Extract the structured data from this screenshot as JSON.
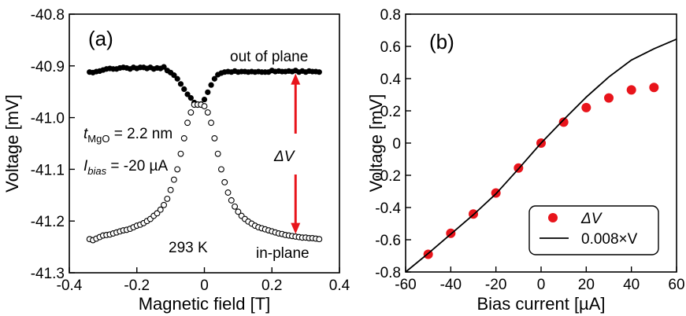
{
  "chart_data": [
    {
      "panel_label": "(a)",
      "type": "scatter",
      "xlabel": "Magnetic field  [T]",
      "ylabel": "Voltage  [mV]",
      "xlim": [
        -0.4,
        0.4
      ],
      "ylim": [
        -41.3,
        -40.8
      ],
      "xticks": [
        -0.4,
        -0.2,
        0,
        0.2,
        0.4
      ],
      "xtick_labels": [
        "-0.4",
        "-0.2",
        "0",
        "0.2",
        "0.4"
      ],
      "yticks": [
        -41.3,
        -41.2,
        -41.1,
        -41.0,
        -40.9,
        -40.8
      ],
      "ytick_labels": [
        "-41.3",
        "-41.2",
        "-41.1",
        "-41.0",
        "-40.9",
        "-40.8"
      ],
      "annotations": {
        "out_of_plane": "out of plane",
        "in_plane": "in-plane",
        "temperature": "293 K",
        "tmgo_sym": "t",
        "tmgo_sub": "MgO",
        "tmgo_val": " = 2.2 nm",
        "ibias_sym": "I",
        "ibias_sub": "bias",
        "ibias_val": " = -20 µA",
        "delta_v": "ΔV",
        "arrow_color": "#e8141b",
        "arrow_x": 0.27,
        "arrow_y_top": -40.915,
        "arrow_y_bottom": -41.225
      },
      "series": [
        {
          "style": "filled",
          "color": "#000000",
          "x": [
            -0.34,
            -0.33,
            -0.32,
            -0.31,
            -0.3,
            -0.29,
            -0.28,
            -0.27,
            -0.26,
            -0.25,
            -0.24,
            -0.23,
            -0.22,
            -0.21,
            -0.2,
            -0.19,
            -0.18,
            -0.17,
            -0.16,
            -0.15,
            -0.14,
            -0.13,
            -0.12,
            -0.11,
            -0.1,
            -0.09,
            -0.08,
            -0.07,
            -0.06,
            -0.05,
            -0.04,
            -0.03,
            -0.02,
            -0.01,
            0,
            0.01,
            0.02,
            0.03,
            0.04,
            0.05,
            0.06,
            0.07,
            0.08,
            0.09,
            0.1,
            0.11,
            0.12,
            0.13,
            0.14,
            0.15,
            0.16,
            0.17,
            0.18,
            0.19,
            0.2,
            0.21,
            0.22,
            0.23,
            0.24,
            0.25,
            0.26,
            0.27,
            0.28,
            0.29,
            0.3,
            0.31,
            0.32,
            0.33,
            0.34
          ],
          "y": [
            -40.912,
            -40.913,
            -40.911,
            -40.91,
            -40.908,
            -40.906,
            -40.905,
            -40.906,
            -40.906,
            -40.904,
            -40.903,
            -40.904,
            -40.906,
            -40.903,
            -40.905,
            -40.903,
            -40.903,
            -40.905,
            -40.903,
            -40.906,
            -40.904,
            -40.905,
            -40.902,
            -40.909,
            -40.913,
            -40.918,
            -40.925,
            -40.935,
            -40.945,
            -40.955,
            -40.962,
            -40.971,
            -40.974,
            -40.974,
            -40.965,
            -40.951,
            -40.937,
            -40.925,
            -40.917,
            -40.914,
            -40.912,
            -40.911,
            -40.912,
            -40.91,
            -40.912,
            -40.911,
            -40.911,
            -40.912,
            -40.911,
            -40.912,
            -40.911,
            -40.912,
            -40.912,
            -40.912,
            -40.909,
            -40.911,
            -40.91,
            -40.911,
            -40.911,
            -40.91,
            -40.911,
            -40.909,
            -40.912,
            -40.91,
            -40.912,
            -40.91,
            -40.911,
            -40.911,
            -40.912
          ]
        },
        {
          "style": "open",
          "color": "#000000",
          "x": [
            -0.34,
            -0.33,
            -0.32,
            -0.31,
            -0.3,
            -0.29,
            -0.28,
            -0.27,
            -0.26,
            -0.25,
            -0.24,
            -0.23,
            -0.22,
            -0.21,
            -0.2,
            -0.19,
            -0.18,
            -0.17,
            -0.16,
            -0.15,
            -0.14,
            -0.13,
            -0.12,
            -0.11,
            -0.1,
            -0.09,
            -0.08,
            -0.07,
            -0.06,
            -0.05,
            -0.04,
            -0.03,
            -0.02,
            -0.01,
            0,
            0.01,
            0.02,
            0.03,
            0.04,
            0.05,
            0.06,
            0.07,
            0.08,
            0.09,
            0.1,
            0.11,
            0.12,
            0.13,
            0.14,
            0.15,
            0.16,
            0.17,
            0.18,
            0.19,
            0.2,
            0.21,
            0.22,
            0.23,
            0.24,
            0.25,
            0.26,
            0.27,
            0.28,
            0.29,
            0.3,
            0.31,
            0.32,
            0.33,
            0.34
          ],
          "y": [
            -41.235,
            -41.237,
            -41.234,
            -41.231,
            -41.228,
            -41.227,
            -41.226,
            -41.224,
            -41.222,
            -41.22,
            -41.218,
            -41.217,
            -41.215,
            -41.212,
            -41.209,
            -41.207,
            -41.204,
            -41.2,
            -41.196,
            -41.19,
            -41.185,
            -41.178,
            -41.169,
            -41.157,
            -41.14,
            -41.12,
            -41.1,
            -41.07,
            -41.04,
            -41.01,
            -40.99,
            -40.975,
            -40.975,
            -40.975,
            -40.978,
            -40.99,
            -41.01,
            -41.04,
            -41.07,
            -41.1,
            -41.125,
            -41.145,
            -41.16,
            -41.172,
            -41.182,
            -41.19,
            -41.196,
            -41.201,
            -41.205,
            -41.209,
            -41.212,
            -41.214,
            -41.216,
            -41.218,
            -41.22,
            -41.222,
            -41.224,
            -41.225,
            -41.227,
            -41.228,
            -41.229,
            -41.23,
            -41.231,
            -41.232,
            -41.232,
            -41.233,
            -41.233,
            -41.234,
            -41.235
          ]
        }
      ]
    },
    {
      "panel_label": "(b)",
      "type": "scatter",
      "xlabel": "Bias current  [µA]",
      "ylabel": "Voltage  [mV]",
      "xlim": [
        -60,
        60
      ],
      "ylim": [
        -0.8,
        0.8
      ],
      "xticks": [
        -60,
        -40,
        -20,
        0,
        20,
        40,
        60
      ],
      "xtick_labels": [
        "-60",
        "-40",
        "-20",
        "0",
        "20",
        "40",
        "60"
      ],
      "yticks": [
        -0.8,
        -0.6,
        -0.4,
        -0.2,
        0,
        0.2,
        0.4,
        0.6,
        0.8
      ],
      "ytick_labels": [
        "-0.8",
        "-0.6",
        "-0.4",
        "-0.2",
        "0",
        "0.2",
        "0.4",
        "0.6",
        "0.8"
      ],
      "legend_position": "bottom-right",
      "series": [
        {
          "name": "ΔV",
          "style": "marker",
          "color": "#e8141b",
          "x": [
            -50,
            -40,
            -30,
            -20,
            -10,
            0,
            10,
            20,
            30,
            40,
            50
          ],
          "y": [
            -0.69,
            -0.56,
            -0.44,
            -0.31,
            -0.155,
            0.0,
            0.13,
            0.22,
            0.28,
            0.33,
            0.345
          ]
        },
        {
          "name": "0.008×V",
          "style": "line",
          "color": "#000000",
          "x": [
            -60,
            -50,
            -40,
            -30,
            -20,
            -10,
            0,
            10,
            20,
            30,
            40,
            50,
            60
          ],
          "y": [
            -0.8,
            -0.685,
            -0.565,
            -0.445,
            -0.315,
            -0.16,
            0.0,
            0.145,
            0.285,
            0.41,
            0.515,
            0.585,
            0.645
          ]
        }
      ]
    }
  ]
}
